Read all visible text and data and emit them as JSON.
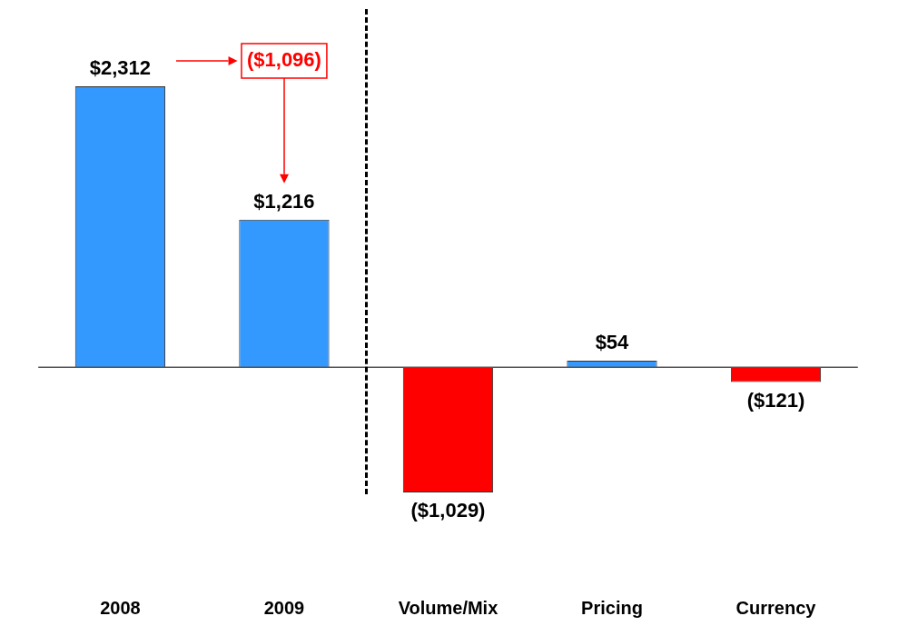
{
  "chart_data": {
    "type": "bar",
    "categories": [
      "2008",
      "2009",
      "Volume/Mix",
      "Pricing",
      "Currency"
    ],
    "values": [
      2312,
      1216,
      -1029,
      54,
      -121
    ],
    "colors": [
      "#3399ff",
      "#3399ff",
      "#ff0000",
      "#3399ff",
      "#ff0000"
    ],
    "value_labels": [
      "$2,312",
      "$1,216",
      "($1,029)",
      "$54",
      "($121)"
    ],
    "annotations": [
      "($1,096)"
    ],
    "grid": false,
    "legend": false
  }
}
